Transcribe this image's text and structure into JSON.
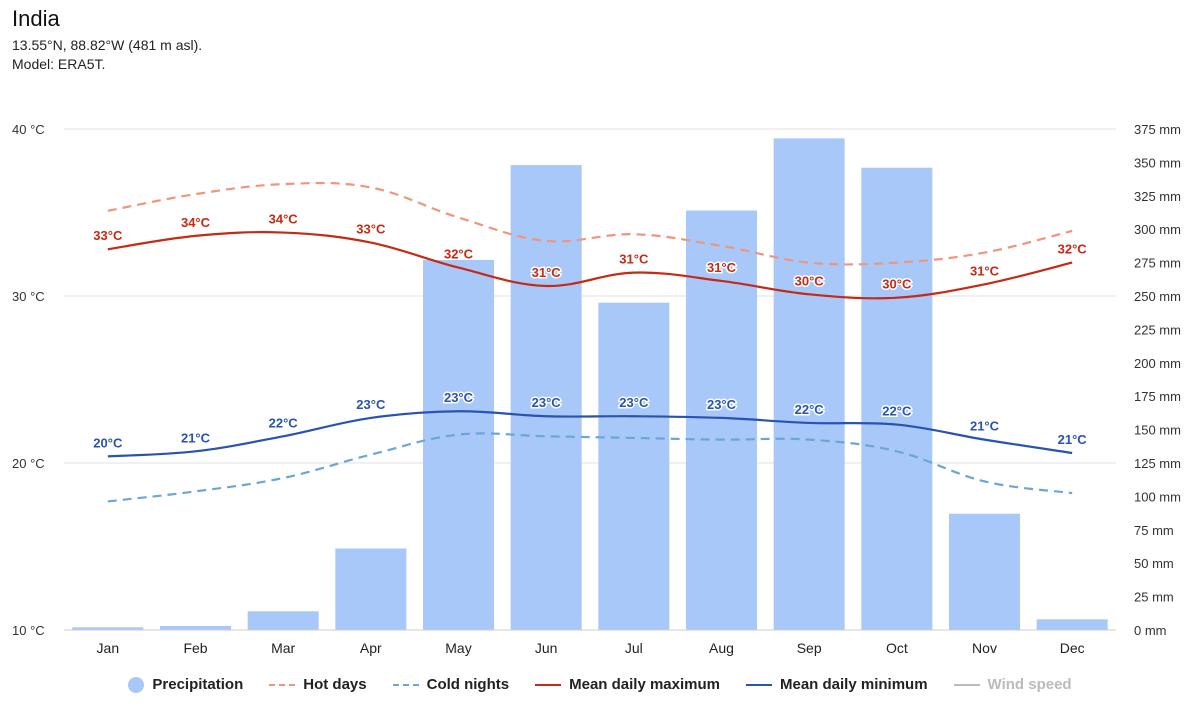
{
  "header": {
    "title": "India",
    "coords": "13.55°N, 88.82°W (481 m asl).",
    "model": "Model: ERA5T."
  },
  "colors": {
    "precip": "#a8c8fa",
    "hot": "#f0957c",
    "cold": "#6aa6d8",
    "max": "#c42a14",
    "min": "#2853b0",
    "wind": "#bbbbbb",
    "grid": "#e0e0e0"
  },
  "legend": [
    {
      "key": "precip",
      "label": "Precipitation",
      "icon": "dot"
    },
    {
      "key": "hot",
      "label": "Hot days",
      "icon": "dash"
    },
    {
      "key": "cold",
      "label": "Cold nights",
      "icon": "dash"
    },
    {
      "key": "max",
      "label": "Mean daily maximum",
      "icon": "line"
    },
    {
      "key": "min",
      "label": "Mean daily minimum",
      "icon": "line"
    },
    {
      "key": "wind",
      "label": "Wind speed",
      "icon": "line",
      "muted": true
    }
  ],
  "chart_data": {
    "type": "bar",
    "categories": [
      "Jan",
      "Feb",
      "Mar",
      "Apr",
      "May",
      "Jun",
      "Jul",
      "Aug",
      "Sep",
      "Oct",
      "Nov",
      "Dec"
    ],
    "left_axis": {
      "unit": "°C",
      "min": 10,
      "max": 40,
      "ticks": [
        "10 °C",
        "20 °C",
        "30 °C",
        "40 °C"
      ],
      "tick_values": [
        10,
        20,
        30,
        40
      ]
    },
    "right_axis": {
      "unit": "mm",
      "min": 0,
      "max": 375,
      "ticks": [
        "0 mm",
        "25 mm",
        "50 mm",
        "75 mm",
        "100 mm",
        "125 mm",
        "150 mm",
        "175 mm",
        "200 mm",
        "225 mm",
        "250 mm",
        "275 mm",
        "300 mm",
        "325 mm",
        "350 mm",
        "375 mm"
      ],
      "tick_values": [
        0,
        25,
        50,
        75,
        100,
        125,
        150,
        175,
        200,
        225,
        250,
        275,
        300,
        325,
        350,
        375
      ]
    },
    "series": [
      {
        "name": "Precipitation",
        "key": "precip",
        "type": "bar",
        "axis": "right",
        "values": [
          2,
          3,
          14,
          61,
          277,
          348,
          245,
          314,
          368,
          346,
          87,
          8
        ]
      },
      {
        "name": "Hot days",
        "key": "hot",
        "type": "line",
        "dashed": true,
        "axis": "left",
        "values": [
          35.1,
          36.1,
          36.7,
          36.5,
          34.7,
          33.3,
          33.7,
          33.0,
          32.0,
          32.0,
          32.6,
          33.9
        ]
      },
      {
        "name": "Cold nights",
        "key": "cold",
        "type": "line",
        "dashed": true,
        "axis": "left",
        "values": [
          17.7,
          18.3,
          19.1,
          20.5,
          21.7,
          21.6,
          21.5,
          21.4,
          21.4,
          20.7,
          18.9,
          18.2
        ]
      },
      {
        "name": "Mean daily maximum",
        "key": "max",
        "type": "line",
        "axis": "left",
        "values": [
          32.8,
          33.6,
          33.8,
          33.2,
          31.7,
          30.6,
          31.4,
          30.9,
          30.1,
          29.9,
          30.7,
          32.0
        ],
        "labels": [
          "33°C",
          "34°C",
          "34°C",
          "33°C",
          "32°C",
          "31°C",
          "31°C",
          "31°C",
          "30°C",
          "30°C",
          "31°C",
          "32°C"
        ]
      },
      {
        "name": "Mean daily minimum",
        "key": "min",
        "type": "line",
        "axis": "left",
        "values": [
          20.4,
          20.7,
          21.6,
          22.7,
          23.1,
          22.8,
          22.8,
          22.7,
          22.4,
          22.3,
          21.4,
          20.6
        ],
        "labels": [
          "20°C",
          "21°C",
          "22°C",
          "23°C",
          "23°C",
          "23°C",
          "23°C",
          "23°C",
          "22°C",
          "22°C",
          "21°C",
          "21°C"
        ]
      }
    ]
  }
}
